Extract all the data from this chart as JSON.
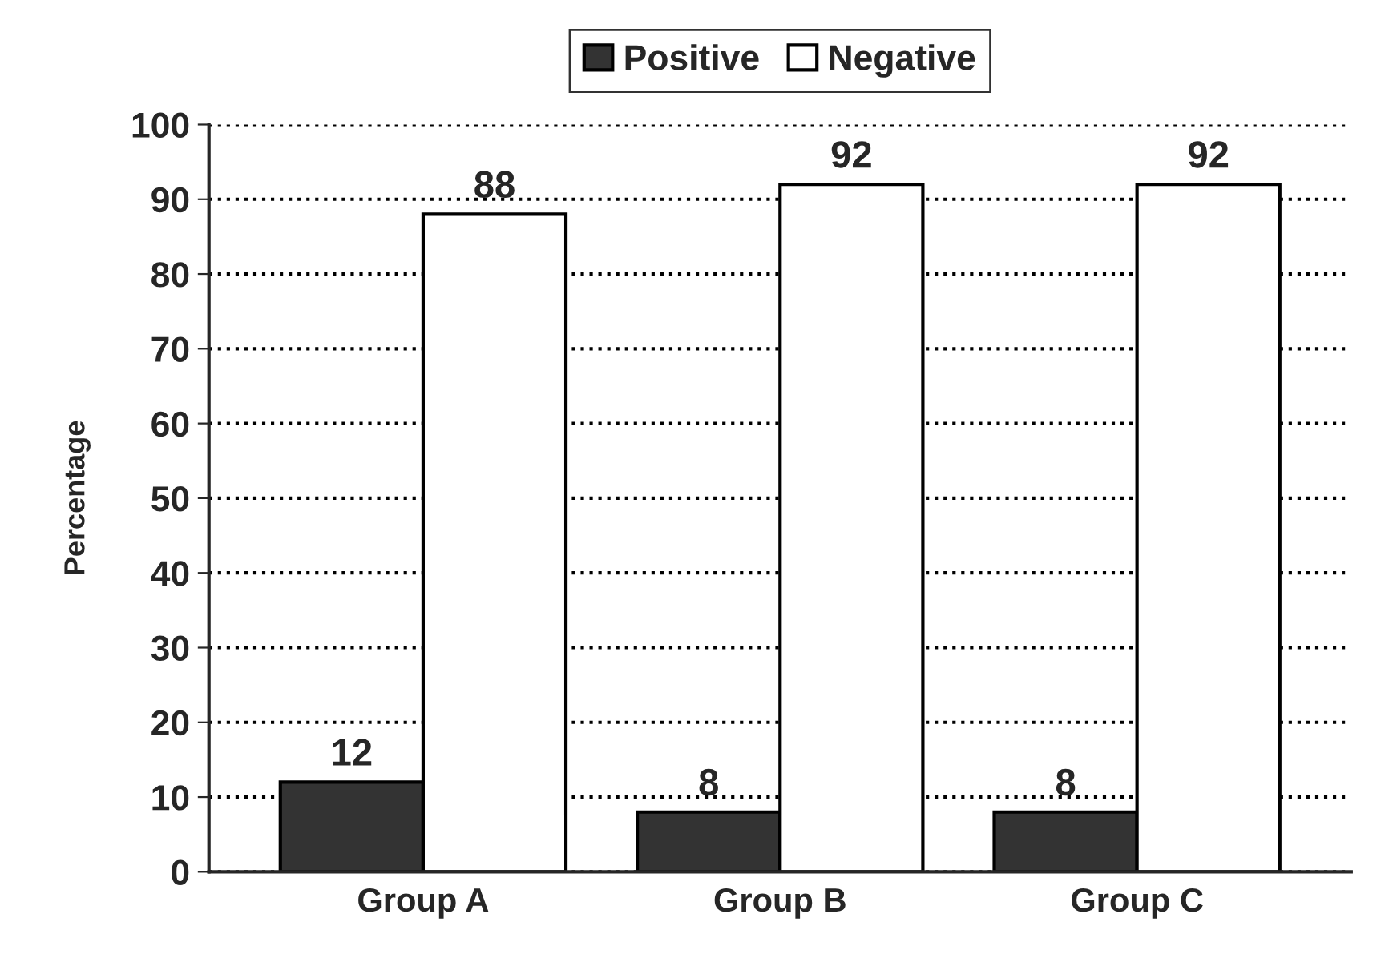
{
  "chart_data": {
    "type": "bar",
    "ylabel": "Percentage",
    "categories": [
      "Group A",
      "Group B",
      "Group C"
    ],
    "series": [
      {
        "name": "Positive",
        "color": "#333333",
        "values": [
          12,
          8,
          8
        ]
      },
      {
        "name": "Negative",
        "color": "#ffffff",
        "values": [
          88,
          92,
          92
        ]
      }
    ],
    "ylim": [
      0,
      100
    ],
    "yticks": [
      0,
      10,
      20,
      30,
      40,
      50,
      60,
      70,
      80,
      90,
      100
    ],
    "grid": "y",
    "line_style": "dotted",
    "legend": "top",
    "data_labels": true
  }
}
